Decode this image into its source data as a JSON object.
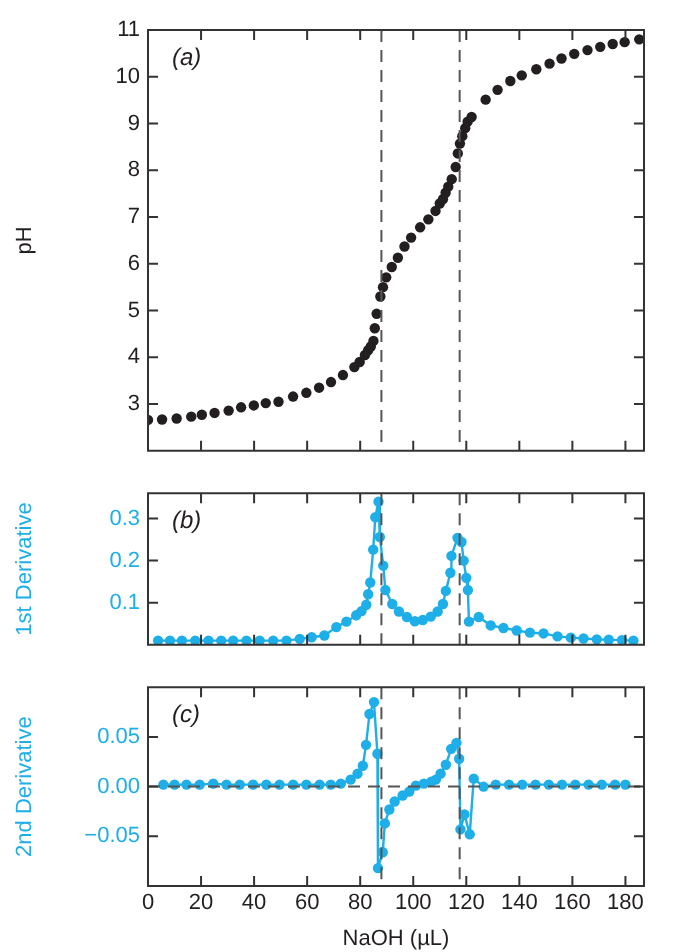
{
  "chart_data": [
    {
      "type": "scatter",
      "ylabel": "pH",
      "annotations": [
        "(a)"
      ],
      "marker": "circle",
      "tick_labels": "y",
      "xlim": [
        0,
        187
      ],
      "xticks": [
        0,
        20,
        40,
        60,
        80,
        100,
        120,
        140,
        160,
        180
      ],
      "ylim": [
        2,
        11
      ],
      "yticks": [
        3,
        4,
        5,
        6,
        7,
        8,
        9,
        10,
        11
      ],
      "ref_lines": [
        {
          "axis": "x",
          "value": 88,
          "color": "#555555",
          "line_style": "dashed"
        },
        {
          "axis": "x",
          "value": 117.5,
          "color": "#555555",
          "line_style": "dashed"
        }
      ],
      "series": [
        {
          "color": "#231f20",
          "x": [
            0,
            5.3,
            10.8,
            16.3,
            20.3,
            25.1,
            30.4,
            35.1,
            39.9,
            44.4,
            49.2,
            54.7,
            59.7,
            64.5,
            69,
            73.5,
            77.8,
            79.8,
            81.8,
            83,
            84,
            85,
            85.5,
            86.2,
            87.6,
            88.6,
            89.8,
            91.9,
            94.2,
            96.7,
            99.2,
            102.6,
            105.7,
            108.4,
            110,
            111.2,
            112.2,
            113.2,
            114.5,
            116,
            116.8,
            117.6,
            118.5,
            119.6,
            120.5,
            122,
            127.3,
            131.8,
            136.6,
            140.9,
            146.4,
            151.4,
            155.9,
            160.7,
            165.7,
            170.5,
            175.2,
            179.7,
            185.2
          ],
          "values": [
            2.66,
            2.67,
            2.69,
            2.73,
            2.77,
            2.81,
            2.86,
            2.93,
            2.97,
            3.02,
            3.05,
            3.16,
            3.24,
            3.35,
            3.47,
            3.62,
            3.79,
            3.9,
            4.05,
            4.15,
            4.23,
            4.35,
            4.62,
            4.93,
            5.3,
            5.5,
            5.71,
            5.93,
            6.13,
            6.37,
            6.56,
            6.78,
            6.95,
            7.13,
            7.29,
            7.38,
            7.52,
            7.65,
            7.81,
            8.07,
            8.36,
            8.57,
            8.73,
            8.9,
            9.04,
            9.14,
            9.51,
            9.72,
            9.91,
            10.03,
            10.16,
            10.28,
            10.39,
            10.49,
            10.57,
            10.64,
            10.7,
            10.74,
            10.8
          ]
        }
      ]
    },
    {
      "type": "line",
      "ylabel": "1st Derivative",
      "annotations": [
        "(b)"
      ],
      "marker": "circle",
      "tick_labels": "y",
      "xlim": [
        0,
        187
      ],
      "xticks": [
        0,
        20,
        40,
        60,
        80,
        100,
        120,
        140,
        160,
        180
      ],
      "ylim": [
        0,
        0.36
      ],
      "yticks": [
        0.1,
        0.2,
        0.3
      ],
      "ref_lines": [
        {
          "axis": "x",
          "value": 88,
          "color": "#555555",
          "line_style": "dashed"
        },
        {
          "axis": "x",
          "value": 117.5,
          "color": "#555555",
          "line_style": "dashed"
        }
      ],
      "series": [
        {
          "color": "#1eaee8",
          "x": [
            3.8,
            8.3,
            12.8,
            17.8,
            22.8,
            27.6,
            32.1,
            37.1,
            42.1,
            47.2,
            52.2,
            57.2,
            61.7,
            66.5,
            71,
            74.8,
            78.5,
            80.5,
            82.3,
            83,
            83.8,
            84.9,
            85.7,
            86.9,
            87.4,
            88.7,
            89.5,
            92.1,
            94.6,
            97.6,
            100.6,
            103.6,
            106.6,
            109.2,
            111.2,
            112.3,
            114,
            114.4,
            116.7,
            118.2,
            119,
            120,
            120.6,
            121,
            124.7,
            129.2,
            134,
            139,
            144,
            149.1,
            154.4,
            159.4,
            164.2,
            169.2,
            173.7,
            178.7,
            183
          ],
          "values": [
            0.01,
            0.01,
            0.01,
            0.01,
            0.01,
            0.01,
            0.01,
            0.01,
            0.01,
            0.01,
            0.01,
            0.014,
            0.018,
            0.022,
            0.042,
            0.055,
            0.07,
            0.08,
            0.095,
            0.12,
            0.148,
            0.226,
            0.303,
            0.34,
            0.256,
            0.188,
            0.13,
            0.097,
            0.079,
            0.066,
            0.056,
            0.059,
            0.067,
            0.079,
            0.097,
            0.128,
            0.171,
            0.211,
            0.254,
            0.244,
            0.2,
            0.159,
            0.13,
            0.055,
            0.066,
            0.046,
            0.04,
            0.034,
            0.029,
            0.027,
            0.02,
            0.017,
            0.015,
            0.013,
            0.012,
            0.011,
            0.01
          ]
        }
      ]
    },
    {
      "type": "line",
      "xlabel": "NaOH (µL)",
      "ylabel": "2nd Derivative",
      "annotations": [
        "(c)"
      ],
      "marker": "circle",
      "xlim": [
        0,
        187
      ],
      "xticks": [
        0,
        20,
        40,
        60,
        80,
        100,
        120,
        140,
        160,
        180
      ],
      "ylim": [
        -0.1,
        0.1
      ],
      "yticks": [
        {
          "value": -0.05,
          "label": "−0.05"
        },
        {
          "value": 0,
          "label": "0.00"
        },
        0.05
      ],
      "ref_lines": [
        {
          "axis": "x",
          "value": 88,
          "color": "#555555",
          "line_style": "dashed"
        },
        {
          "axis": "x",
          "value": 117.5,
          "color": "#555555",
          "line_style": "dashed"
        },
        {
          "axis": "y",
          "value": 0,
          "color": "#555555",
          "line_style": "dashed"
        }
      ],
      "series": [
        {
          "color": "#1eaee8",
          "x": [
            5.8,
            10,
            14.5,
            19.5,
            24.6,
            29.6,
            34.6,
            39.6,
            44.6,
            49.6,
            54.7,
            59.7,
            64.7,
            68.9,
            72.7,
            76.4,
            79,
            81,
            82.2,
            83.5,
            85.2,
            86.5,
            86.7,
            88.5,
            89.3,
            91,
            93,
            96,
            98.5,
            101,
            104,
            106.8,
            108.5,
            110.3,
            112.3,
            114.3,
            116.3,
            117.3,
            117.8,
            119.3,
            121.3,
            122.8,
            126.5,
            131.1,
            136.1,
            141.1,
            146.1,
            151.1,
            156.1,
            161.1,
            166.1,
            171.1,
            176.1,
            180
          ],
          "values": [
            0.002,
            0.002,
            0.002,
            0.002,
            0.003,
            0.002,
            0.002,
            0.002,
            0.002,
            0.002,
            0.002,
            0.002,
            0.002,
            0.002,
            0.003,
            0.007,
            0.013,
            0.021,
            0.042,
            0.073,
            0.085,
            0.033,
            -0.082,
            -0.066,
            -0.037,
            -0.023,
            -0.015,
            -0.009,
            -0.005,
            0.001,
            0.003,
            0.005,
            0.007,
            0.013,
            0.022,
            0.038,
            0.044,
            0.028,
            -0.043,
            -0.028,
            -0.048,
            0.008,
            0,
            0.002,
            0.002,
            0.002,
            0.002,
            0.002,
            0.002,
            0.002,
            0.002,
            0.002,
            0.002,
            0.002
          ]
        }
      ]
    }
  ]
}
